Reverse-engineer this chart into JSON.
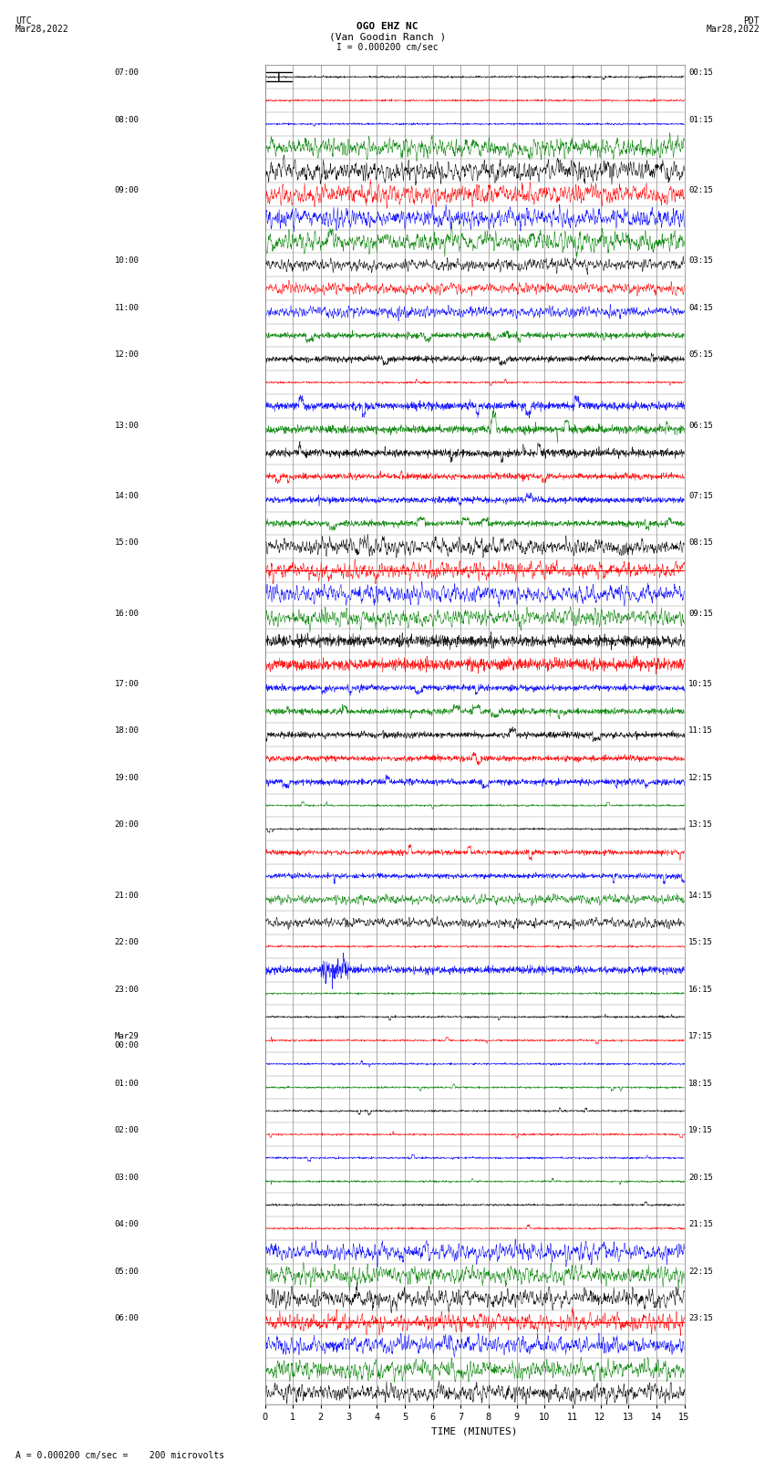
{
  "title_line1": "OGO EHZ NC",
  "title_line2": "(Van Goodin Ranch )",
  "title_line3": "I = 0.000200 cm/sec",
  "utc_label": "UTC",
  "utc_date": "Mar28,2022",
  "pdt_label": "PDT",
  "pdt_date": "Mar28,2022",
  "xlabel": "TIME (MINUTES)",
  "footer": "A = 0.000200 cm/sec =    200 microvolts",
  "left_times": [
    "07:00",
    "",
    "08:00",
    "",
    "",
    "09:00",
    "",
    "",
    "10:00",
    "",
    "11:00",
    "",
    "12:00",
    "",
    "",
    "13:00",
    "",
    "",
    "14:00",
    "",
    "15:00",
    "",
    "",
    "16:00",
    "",
    "",
    "17:00",
    "",
    "18:00",
    "",
    "19:00",
    "",
    "20:00",
    "",
    "",
    "21:00",
    "",
    "22:00",
    "",
    "23:00",
    "",
    "Mar29\n00:00",
    "",
    "01:00",
    "",
    "02:00",
    "",
    "03:00",
    "",
    "04:00",
    "",
    "05:00",
    "",
    "06:00",
    ""
  ],
  "right_times": [
    "00:15",
    "",
    "01:15",
    "",
    "",
    "02:15",
    "",
    "",
    "03:15",
    "",
    "04:15",
    "",
    "05:15",
    "",
    "",
    "06:15",
    "",
    "",
    "07:15",
    "",
    "08:15",
    "",
    "",
    "09:15",
    "",
    "",
    "10:15",
    "",
    "11:15",
    "",
    "12:15",
    "",
    "13:15",
    "",
    "",
    "14:15",
    "",
    "15:15",
    "",
    "16:15",
    "",
    "17:15",
    "",
    "18:15",
    "",
    "19:15",
    "",
    "20:15",
    "",
    "21:15",
    "",
    "22:15",
    "",
    "23:15",
    ""
  ],
  "xlim": [
    0,
    15
  ],
  "xticks": [
    0,
    1,
    2,
    3,
    4,
    5,
    6,
    7,
    8,
    9,
    10,
    11,
    12,
    13,
    14,
    15
  ],
  "n_rows": 57,
  "bg_color": "#ffffff",
  "grid_color": "#888888",
  "trace_colors_cycle": [
    "black",
    "red",
    "blue",
    "green"
  ],
  "line_color": "#888888",
  "seed": 42
}
